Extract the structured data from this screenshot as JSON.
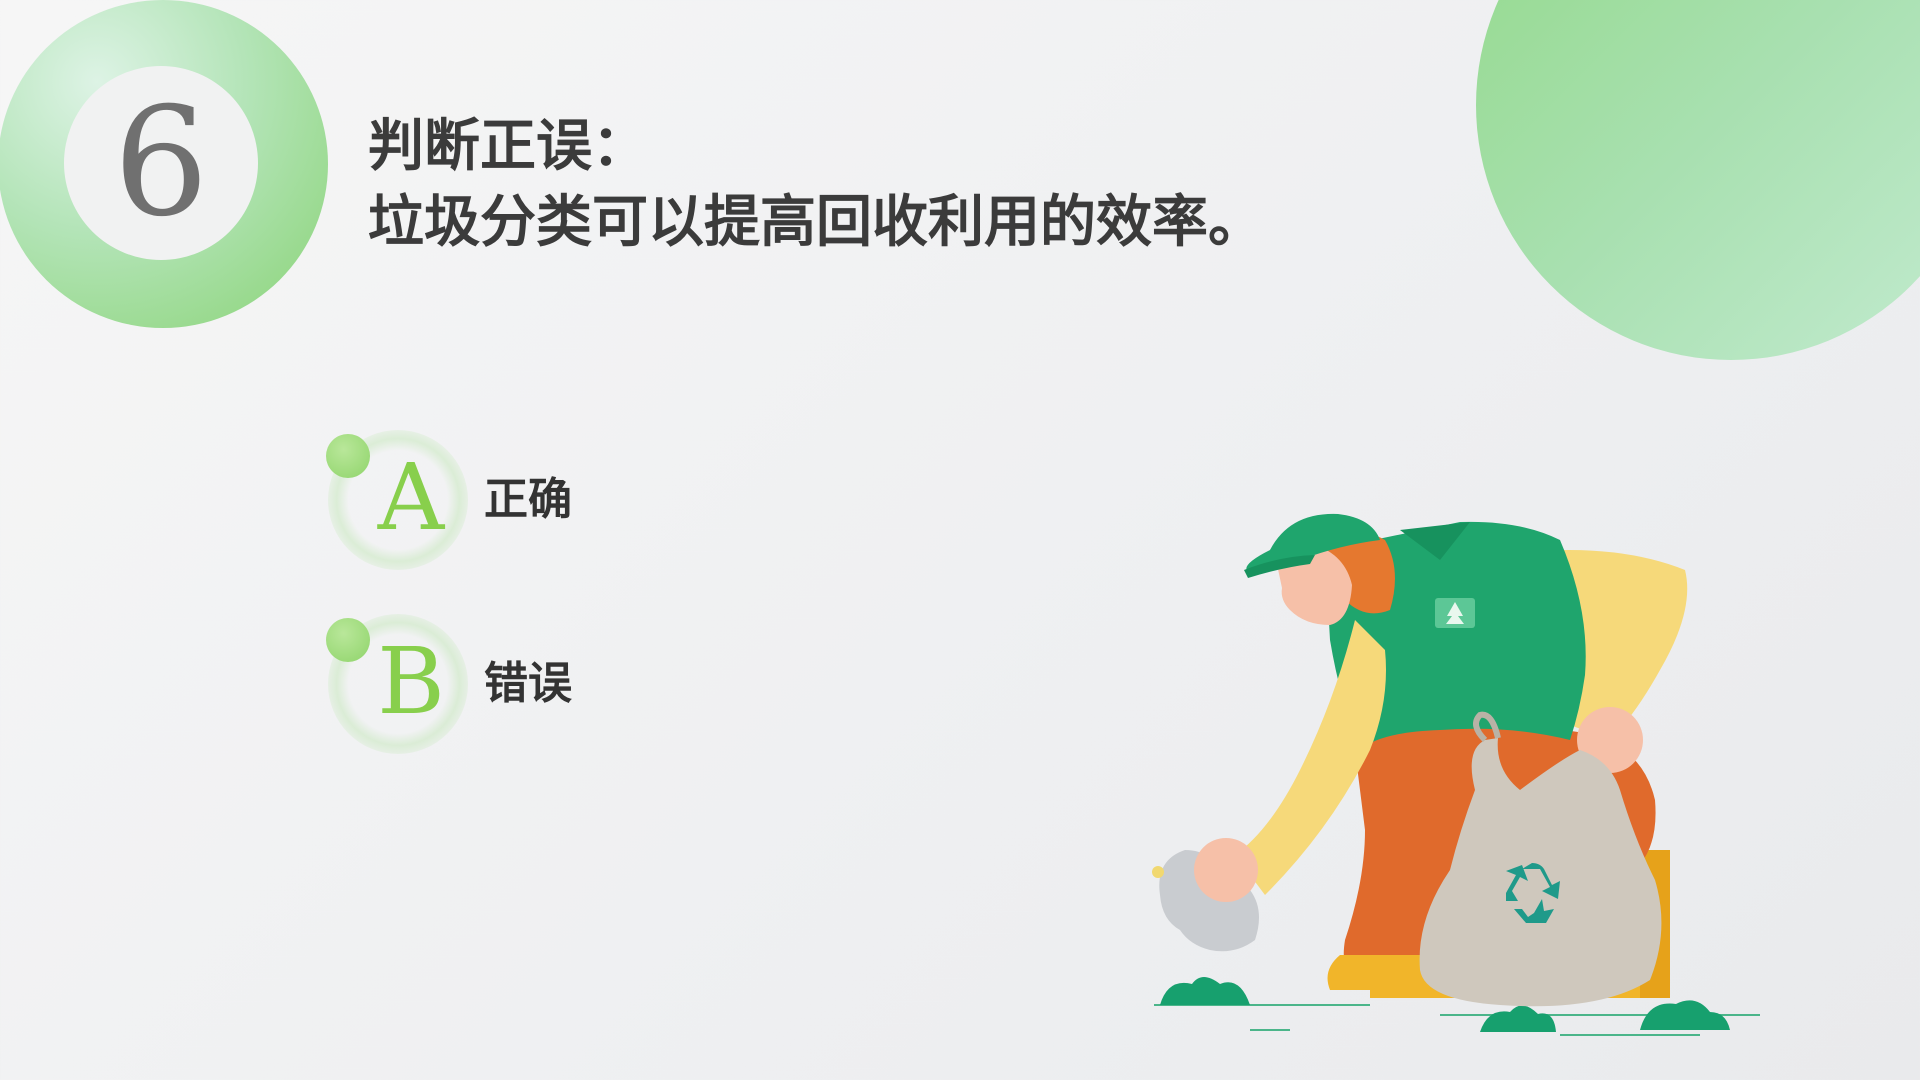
{
  "slide": {
    "number": "6",
    "question_line1": "判断正误：",
    "question_line2": "垃圾分类可以提高回收利用的效率。"
  },
  "options": [
    {
      "letter": "A",
      "label": "正确"
    },
    {
      "letter": "B",
      "label": "错误"
    }
  ],
  "colors": {
    "accent_green": "#88cf4c",
    "badge_green": "#89d375",
    "text_dark": "#3b3b3b",
    "vest_green": "#1fa56d",
    "shirt_yellow": "#f6d97a",
    "pants_orange": "#e06a2c"
  },
  "illustration": {
    "subject": "worker-collecting-recyclables",
    "icon": "recycle-icon"
  }
}
